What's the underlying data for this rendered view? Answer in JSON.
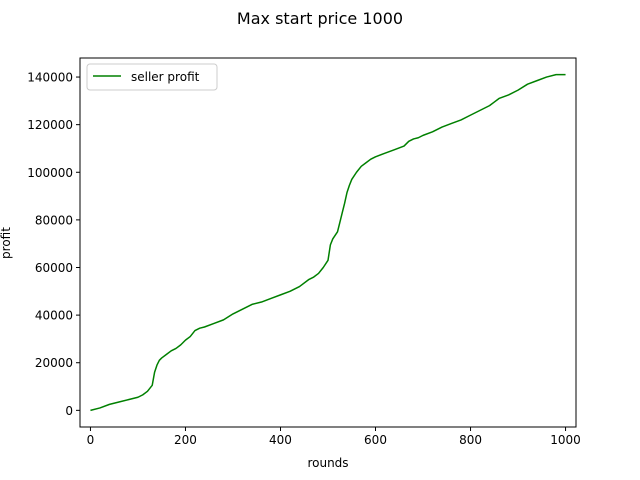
{
  "chart_data": {
    "type": "line",
    "title": "Max start price 1000",
    "xlabel": "rounds",
    "ylabel": "profit",
    "xlim": [
      -22,
      1022
    ],
    "ylim": [
      -7000,
      148000
    ],
    "xticks": [
      0,
      200,
      400,
      600,
      800,
      1000
    ],
    "yticks": [
      0,
      20000,
      40000,
      60000,
      80000,
      100000,
      120000,
      140000
    ],
    "xtick_labels": [
      "0",
      "200",
      "400",
      "600",
      "800",
      "1000"
    ],
    "ytick_labels": [
      "0",
      "20000",
      "40000",
      "60000",
      "80000",
      "100000",
      "120000",
      "140000"
    ],
    "grid": false,
    "legend_position": "upper-left",
    "series": [
      {
        "name": "seller profit",
        "color": "#008000",
        "x": [
          0,
          20,
          40,
          60,
          80,
          100,
          110,
          120,
          130,
          135,
          140,
          145,
          150,
          160,
          170,
          180,
          190,
          195,
          200,
          210,
          220,
          230,
          240,
          260,
          280,
          300,
          310,
          320,
          340,
          360,
          380,
          400,
          420,
          440,
          460,
          470,
          480,
          490,
          500,
          505,
          510,
          520,
          525,
          530,
          535,
          540,
          545,
          550,
          560,
          570,
          580,
          590,
          600,
          620,
          640,
          660,
          670,
          680,
          690,
          700,
          720,
          740,
          760,
          780,
          800,
          820,
          840,
          850,
          860,
          880,
          900,
          920,
          940,
          960,
          980,
          1000
        ],
        "y": [
          0,
          1000,
          2500,
          3500,
          4500,
          5500,
          6500,
          8000,
          10500,
          16000,
          19000,
          21000,
          22000,
          23500,
          25000,
          26000,
          27500,
          28500,
          29500,
          31000,
          33500,
          34500,
          35000,
          36500,
          38000,
          40500,
          41500,
          42500,
          44500,
          45500,
          47000,
          48500,
          50000,
          52000,
          55000,
          56000,
          57500,
          60000,
          63000,
          69500,
          72000,
          75000,
          79000,
          83000,
          87000,
          91500,
          94500,
          97000,
          100000,
          102500,
          104000,
          105500,
          106500,
          108000,
          109500,
          111000,
          113000,
          114000,
          114500,
          115500,
          117000,
          119000,
          120500,
          122000,
          124000,
          126000,
          128000,
          129500,
          131000,
          132500,
          134500,
          137000,
          138500,
          140000,
          141000,
          141000
        ]
      }
    ]
  }
}
